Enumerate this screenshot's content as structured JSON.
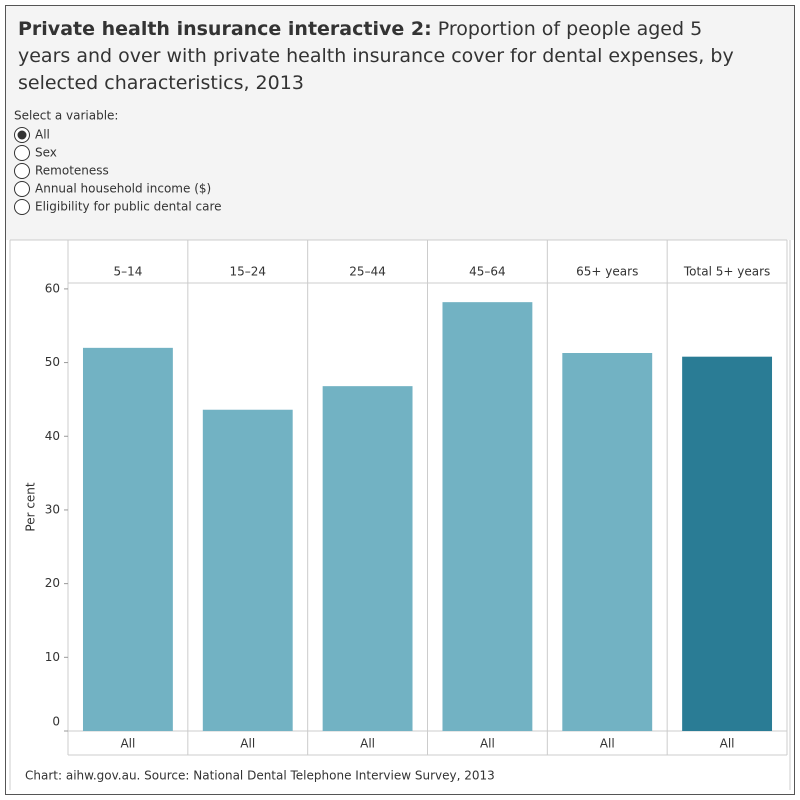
{
  "header": {
    "title_bold": "Private health insurance interactive 2:",
    "title": "Proportion of people aged 5 years and over with private health insurance cover for dental expenses, by selected characteristics, 2013"
  },
  "controls": {
    "label": "Select a variable:",
    "options": [
      "All",
      "Sex",
      "Remoteness",
      "Annual household income ($)",
      "Eligibility for public dental care"
    ],
    "selected": 0
  },
  "chart_data": {
    "type": "bar",
    "categories": [
      "5–14",
      "15–24",
      "25–44",
      "45–64",
      "65+ years",
      "Total 5+ years"
    ],
    "x_labels": [
      "All",
      "All",
      "All",
      "All",
      "All",
      "All"
    ],
    "values": [
      52.0,
      43.6,
      46.8,
      58.2,
      51.3,
      50.8
    ],
    "colors": [
      "#72b2c3",
      "#72b2c3",
      "#72b2c3",
      "#72b2c3",
      "#72b2c3",
      "#2a7c95"
    ],
    "ylabel": "Per cent",
    "ylim": [
      0,
      60.8
    ],
    "yticks": [
      0,
      10,
      20,
      30,
      40,
      50,
      60
    ],
    "grid": false
  },
  "footer": "Chart: aihw.gov.au. Source: National Dental Telephone Interview Survey, 2013"
}
